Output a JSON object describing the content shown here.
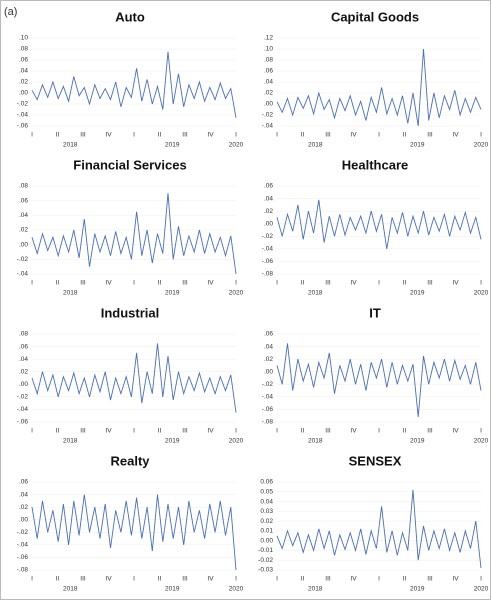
{
  "panel_label": "(a)",
  "chart_data": [
    {
      "type": "line",
      "title": "Auto",
      "color": "#4a6fb5",
      "values": [
        0.005,
        -0.012,
        0.015,
        -0.008,
        0.02,
        -0.01,
        0.012,
        -0.015,
        0.03,
        -0.005,
        0.01,
        -0.02,
        0.015,
        -0.01,
        0.008,
        -0.012,
        0.02,
        -0.025,
        0.01,
        -0.008,
        0.045,
        -0.015,
        0.025,
        -0.02,
        0.012,
        -0.03,
        0.075,
        -0.02,
        0.035,
        -0.025,
        0.015,
        -0.01,
        0.02,
        -0.015,
        0.01,
        -0.012,
        0.018,
        -0.01,
        0.008,
        -0.045
      ],
      "ylim": [
        -0.06,
        0.1
      ],
      "yticks": [
        {
          "value": 0.1,
          "label": ".10"
        },
        {
          "value": 0.08,
          "label": ".08"
        },
        {
          "value": 0.06,
          "label": ".06"
        },
        {
          "value": 0.04,
          "label": ".04"
        },
        {
          "value": 0.02,
          "label": ".02"
        },
        {
          "value": 0,
          "label": ".00"
        },
        {
          "value": -0.02,
          "label": "-.02"
        },
        {
          "value": -0.04,
          "label": "-.04"
        },
        {
          "value": -0.06,
          "label": "-.06"
        }
      ],
      "x_labels": [
        "I",
        "II",
        "III",
        "IV",
        "I",
        "II",
        "III",
        "IV",
        "I"
      ],
      "year_labels": [
        "2018",
        "2019",
        "2020"
      ]
    },
    {
      "type": "line",
      "title": "Capital Goods",
      "color": "#4a6fb5",
      "values": [
        0.004,
        -0.015,
        0.01,
        -0.02,
        0.012,
        -0.008,
        0.015,
        -0.018,
        0.02,
        -0.01,
        0.008,
        -0.025,
        0.01,
        -0.012,
        0.015,
        -0.02,
        0.005,
        -0.03,
        0.012,
        -0.015,
        0.03,
        -0.018,
        0.01,
        -0.02,
        0.015,
        -0.035,
        0.02,
        -0.04,
        0.1,
        -0.03,
        0.02,
        -0.025,
        0.015,
        -0.01,
        0.025,
        -0.02,
        0.01,
        -0.015,
        0.012,
        -0.01
      ],
      "ylim": [
        -0.04,
        0.12
      ],
      "yticks": [
        {
          "value": 0.12,
          "label": ".12"
        },
        {
          "value": 0.1,
          "label": ".10"
        },
        {
          "value": 0.08,
          "label": ".08"
        },
        {
          "value": 0.06,
          "label": ".06"
        },
        {
          "value": 0.04,
          "label": ".04"
        },
        {
          "value": 0.02,
          "label": ".02"
        },
        {
          "value": 0,
          "label": ".00"
        },
        {
          "value": -0.02,
          "label": "-.02"
        },
        {
          "value": -0.04,
          "label": "-.04"
        }
      ],
      "x_labels": [
        "I",
        "II",
        "III",
        "IV",
        "I",
        "II",
        "III",
        "IV",
        "I"
      ],
      "year_labels": [
        "2018",
        "2019",
        "2020"
      ]
    },
    {
      "type": "line",
      "title": "Financial Services",
      "color": "#4a6fb5",
      "values": [
        0.01,
        -0.012,
        0.015,
        -0.008,
        0.01,
        -0.015,
        0.012,
        -0.01,
        0.02,
        -0.018,
        0.035,
        -0.03,
        0.015,
        -0.01,
        0.012,
        -0.015,
        0.018,
        -0.012,
        0.01,
        -0.02,
        0.045,
        -0.015,
        0.02,
        -0.025,
        0.015,
        -0.012,
        0.07,
        -0.02,
        0.025,
        -0.015,
        0.012,
        -0.01,
        0.02,
        -0.012,
        0.015,
        -0.01,
        0.01,
        -0.015,
        0.012,
        -0.04
      ],
      "ylim": [
        -0.04,
        0.08
      ],
      "yticks": [
        {
          "value": 0.08,
          "label": ".08"
        },
        {
          "value": 0.06,
          "label": ".06"
        },
        {
          "value": 0.04,
          "label": ".04"
        },
        {
          "value": 0.02,
          "label": ".02"
        },
        {
          "value": 0,
          "label": ".00"
        },
        {
          "value": -0.02,
          "label": "-.02"
        },
        {
          "value": -0.04,
          "label": "-.04"
        }
      ],
      "x_labels": [
        "I",
        "II",
        "III",
        "IV",
        "I",
        "II",
        "III",
        "IV",
        "I"
      ],
      "year_labels": [
        "2018",
        "2019",
        "2020"
      ]
    },
    {
      "type": "line",
      "title": "Healthcare",
      "color": "#4a6fb5",
      "values": [
        0.01,
        -0.02,
        0.015,
        -0.012,
        0.03,
        -0.025,
        0.02,
        -0.015,
        0.038,
        -0.03,
        0.012,
        -0.02,
        0.015,
        -0.018,
        0.01,
        -0.01,
        0.012,
        -0.015,
        0.02,
        -0.012,
        0.015,
        -0.04,
        0.01,
        -0.015,
        0.018,
        -0.02,
        0.012,
        -0.015,
        0.02,
        -0.018,
        0.01,
        -0.012,
        0.015,
        -0.02,
        0.012,
        -0.01,
        0.018,
        -0.015,
        0.01,
        -0.025
      ],
      "ylim": [
        -0.08,
        0.06
      ],
      "yticks": [
        {
          "value": 0.06,
          "label": ".06"
        },
        {
          "value": 0.04,
          "label": ".04"
        },
        {
          "value": 0.02,
          "label": ".02"
        },
        {
          "value": 0,
          "label": ".00"
        },
        {
          "value": -0.02,
          "label": "-.02"
        },
        {
          "value": -0.04,
          "label": "-.04"
        },
        {
          "value": -0.06,
          "label": "-.06"
        },
        {
          "value": -0.08,
          "label": "-.08"
        }
      ],
      "x_labels": [
        "I",
        "II",
        "III",
        "IV",
        "I",
        "II",
        "III",
        "IV",
        "I"
      ],
      "year_labels": [
        "2018",
        "2019",
        "2020"
      ]
    },
    {
      "type": "line",
      "title": "Industrial",
      "color": "#4a6fb5",
      "values": [
        0.01,
        -0.015,
        0.02,
        -0.01,
        0.015,
        -0.02,
        0.012,
        -0.01,
        0.018,
        -0.015,
        0.01,
        -0.02,
        0.015,
        -0.012,
        0.02,
        -0.025,
        0.01,
        -0.015,
        0.012,
        -0.02,
        0.05,
        -0.03,
        0.02,
        -0.015,
        0.065,
        -0.02,
        0.045,
        -0.025,
        0.02,
        -0.015,
        0.012,
        -0.01,
        0.018,
        -0.012,
        0.01,
        -0.015,
        0.012,
        -0.01,
        0.015,
        -0.045
      ],
      "ylim": [
        -0.06,
        0.08
      ],
      "yticks": [
        {
          "value": 0.08,
          "label": ".08"
        },
        {
          "value": 0.06,
          "label": ".06"
        },
        {
          "value": 0.04,
          "label": ".04"
        },
        {
          "value": 0.02,
          "label": ".02"
        },
        {
          "value": 0,
          "label": ".00"
        },
        {
          "value": -0.02,
          "label": "-.02"
        },
        {
          "value": -0.04,
          "label": "-.04"
        },
        {
          "value": -0.06,
          "label": "-.06"
        }
      ],
      "x_labels": [
        "I",
        "II",
        "III",
        "IV",
        "I",
        "II",
        "III",
        "IV",
        "I"
      ],
      "year_labels": [
        "2018",
        "2019",
        "2020"
      ]
    },
    {
      "type": "line",
      "title": "IT",
      "color": "#4a6fb5",
      "values": [
        0.01,
        -0.02,
        0.045,
        -0.03,
        0.02,
        -0.015,
        0.012,
        -0.025,
        0.015,
        -0.01,
        0.03,
        -0.035,
        0.01,
        -0.015,
        0.02,
        -0.02,
        0.012,
        -0.03,
        0.015,
        -0.01,
        0.02,
        -0.025,
        0.015,
        -0.02,
        0.01,
        -0.015,
        0.012,
        -0.072,
        0.025,
        -0.02,
        0.015,
        -0.01,
        0.02,
        -0.015,
        0.018,
        -0.012,
        0.01,
        -0.02,
        0.015,
        -0.03
      ],
      "ylim": [
        -0.08,
        0.06
      ],
      "yticks": [
        {
          "value": 0.06,
          "label": ".06"
        },
        {
          "value": 0.04,
          "label": ".04"
        },
        {
          "value": 0.02,
          "label": ".02"
        },
        {
          "value": 0,
          "label": ".00"
        },
        {
          "value": -0.02,
          "label": "-.02"
        },
        {
          "value": -0.04,
          "label": "-.04"
        },
        {
          "value": -0.06,
          "label": "-.06"
        },
        {
          "value": -0.08,
          "label": "-.08"
        }
      ],
      "x_labels": [
        "I",
        "II",
        "III",
        "IV",
        "I",
        "II",
        "III",
        "IV",
        "I"
      ],
      "year_labels": [
        "2018",
        "2019",
        "2020"
      ]
    },
    {
      "type": "line",
      "title": "Realty",
      "color": "#4a6fb5",
      "values": [
        0.02,
        -0.03,
        0.03,
        -0.02,
        0.015,
        -0.035,
        0.025,
        -0.04,
        0.03,
        -0.025,
        0.04,
        -0.02,
        0.02,
        -0.03,
        0.025,
        -0.045,
        0.015,
        -0.02,
        0.03,
        -0.025,
        0.035,
        -0.03,
        0.02,
        -0.05,
        0.04,
        -0.035,
        0.025,
        -0.03,
        0.02,
        -0.04,
        0.03,
        -0.02,
        0.015,
        -0.03,
        0.025,
        -0.02,
        0.03,
        -0.025,
        0.02,
        -0.08
      ],
      "ylim": [
        -0.08,
        0.06
      ],
      "yticks": [
        {
          "value": 0.06,
          "label": ".06"
        },
        {
          "value": 0.04,
          "label": ".04"
        },
        {
          "value": 0.02,
          "label": ".02"
        },
        {
          "value": 0,
          "label": ".00"
        },
        {
          "value": -0.02,
          "label": "-.02"
        },
        {
          "value": -0.04,
          "label": "-.04"
        },
        {
          "value": -0.06,
          "label": "-.06"
        },
        {
          "value": -0.08,
          "label": "-.08"
        }
      ],
      "x_labels": [
        "I",
        "II",
        "III",
        "IV",
        "I",
        "II",
        "III",
        "IV",
        "I"
      ],
      "year_labels": [
        "2018",
        "2019",
        "2020"
      ]
    },
    {
      "type": "line",
      "title": "SENSEX",
      "color": "#4a6fb5",
      "values": [
        0.005,
        -0.008,
        0.01,
        -0.005,
        0.008,
        -0.012,
        0.006,
        -0.01,
        0.012,
        -0.008,
        0.01,
        -0.015,
        0.006,
        -0.009,
        0.008,
        -0.01,
        0.012,
        -0.014,
        0.01,
        -0.008,
        0.035,
        -0.012,
        0.01,
        -0.015,
        0.008,
        -0.01,
        0.052,
        -0.02,
        0.015,
        -0.01,
        0.01,
        -0.008,
        0.012,
        -0.01,
        0.008,
        -0.012,
        0.01,
        -0.008,
        0.02,
        -0.028
      ],
      "ylim": [
        -0.03,
        0.06
      ],
      "yticks": [
        {
          "value": 0.06,
          "label": "0.06"
        },
        {
          "value": 0.05,
          "label": "0.05"
        },
        {
          "value": 0.04,
          "label": "0.04"
        },
        {
          "value": 0.03,
          "label": "0.03"
        },
        {
          "value": 0.02,
          "label": "0.02"
        },
        {
          "value": 0.01,
          "label": "0.01"
        },
        {
          "value": 0,
          "label": "0.00"
        },
        {
          "value": -0.01,
          "label": "-0.01"
        },
        {
          "value": -0.02,
          "label": "-0.02"
        },
        {
          "value": -0.03,
          "label": "-0.03"
        }
      ],
      "x_labels": [
        "I",
        "II",
        "III",
        "IV",
        "I",
        "II",
        "III",
        "IV",
        "I"
      ],
      "year_labels": [
        "2018",
        "2019",
        "2020"
      ]
    }
  ]
}
